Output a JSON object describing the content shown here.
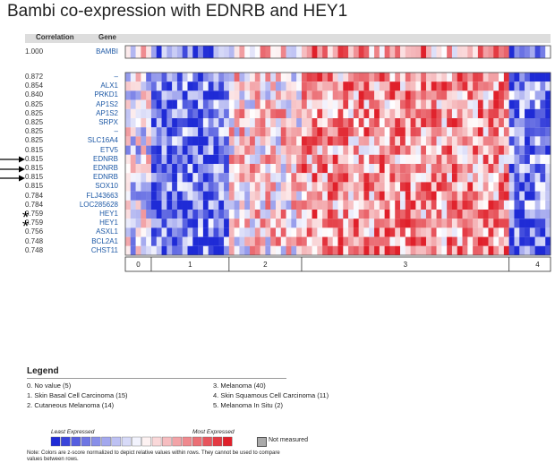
{
  "title": "Bambi co-expression with EDNRB and HEY1",
  "header": {
    "correlation": "Correlation",
    "gene": "Gene"
  },
  "colors": {
    "low": "#1f2bd6",
    "mid": "#ffffff",
    "high": "#e0202a",
    "not_measured": "#aaaaaa"
  },
  "chart_data": {
    "type": "heatmap",
    "title": "Bambi co-expression with EDNRB and HEY1",
    "n_columns": 82,
    "reference_row": {
      "correlation": "1.000",
      "gene": "BAMBI"
    },
    "rows": [
      {
        "correlation": "0.872",
        "gene": "–"
      },
      {
        "correlation": "0.854",
        "gene": "ALX1"
      },
      {
        "correlation": "0.840",
        "gene": "PRKD1"
      },
      {
        "correlation": "0.825",
        "gene": "AP1S2"
      },
      {
        "correlation": "0.825",
        "gene": "AP1S2"
      },
      {
        "correlation": "0.825",
        "gene": "SRPX"
      },
      {
        "correlation": "0.825",
        "gene": "–"
      },
      {
        "correlation": "0.825",
        "gene": "SLC16A4"
      },
      {
        "correlation": "0.815",
        "gene": "ETV5"
      },
      {
        "correlation": "0.815",
        "gene": "EDNRB",
        "marker": "arrow"
      },
      {
        "correlation": "0.815",
        "gene": "EDNRB",
        "marker": "arrow"
      },
      {
        "correlation": "0.815",
        "gene": "EDNRB",
        "marker": "arrow"
      },
      {
        "correlation": "0.815",
        "gene": "SOX10"
      },
      {
        "correlation": "0.784",
        "gene": "FLJ43663"
      },
      {
        "correlation": "0.784",
        "gene": "LOC285628"
      },
      {
        "correlation": "0.759",
        "gene": "HEY1",
        "marker": "star"
      },
      {
        "correlation": "0.759",
        "gene": "HEY1",
        "marker": "star"
      },
      {
        "correlation": "0.756",
        "gene": "ASXL1"
      },
      {
        "correlation": "0.748",
        "gene": "BCL2A1"
      },
      {
        "correlation": "0.748",
        "gene": "CHST11"
      }
    ],
    "groups": [
      {
        "id": "0",
        "count": 5
      },
      {
        "id": "1",
        "count": 15
      },
      {
        "id": "2",
        "count": 14
      },
      {
        "id": "3",
        "count": 40
      },
      {
        "id": "4",
        "count": 11
      },
      {
        "id": "5",
        "count": 2
      }
    ],
    "color_scale": {
      "low_label": "Least Expressed",
      "high_label": "Most Expressed",
      "steps": 18
    }
  },
  "legend": {
    "title": "Legend",
    "items": [
      "0. No value (5)",
      "1. Skin Basal Cell Carcinoma (15)",
      "2. Cutaneous Melanoma (14)",
      "3. Melanoma (40)",
      "4. Skin Squamous Cell Carcinoma (11)",
      "5. Melanoma In Situ (2)"
    ],
    "not_measured": "Not measured",
    "note": "Note: Colors are z-score normalized to depict relative values within rows. They cannot be used to compare values between rows."
  }
}
